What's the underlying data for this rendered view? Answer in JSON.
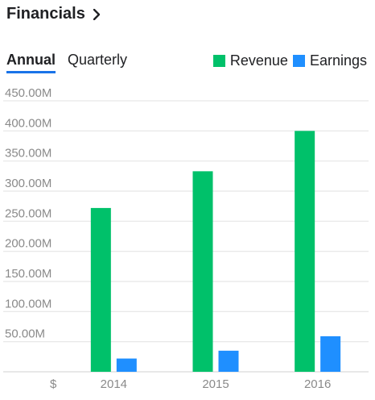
{
  "header": {
    "title": "Financials"
  },
  "tabs": [
    {
      "label": "Annual",
      "active": true
    },
    {
      "label": "Quarterly",
      "active": false
    }
  ],
  "legend": [
    {
      "name": "Revenue",
      "color": "#00c16a"
    },
    {
      "name": "Earnings",
      "color": "#1f8fff"
    }
  ],
  "chart_data": {
    "type": "bar",
    "categories": [
      "2014",
      "2015",
      "2016"
    ],
    "series": [
      {
        "name": "Revenue",
        "values": [
          272,
          333,
          400
        ],
        "color": "#00c16a"
      },
      {
        "name": "Earnings",
        "values": [
          22,
          35,
          59
        ],
        "color": "#1f8fff"
      }
    ],
    "ylim": [
      0,
      450
    ],
    "yticks": [
      50,
      100,
      150,
      200,
      250,
      300,
      350,
      400,
      450
    ],
    "ytick_labels": [
      "50.00M",
      "100.00M",
      "150.00M",
      "200.00M",
      "250.00M",
      "300.00M",
      "350.00M",
      "400.00M",
      "450.00M"
    ],
    "currency_label": "$",
    "grid": true,
    "legend_position": "top-right"
  }
}
